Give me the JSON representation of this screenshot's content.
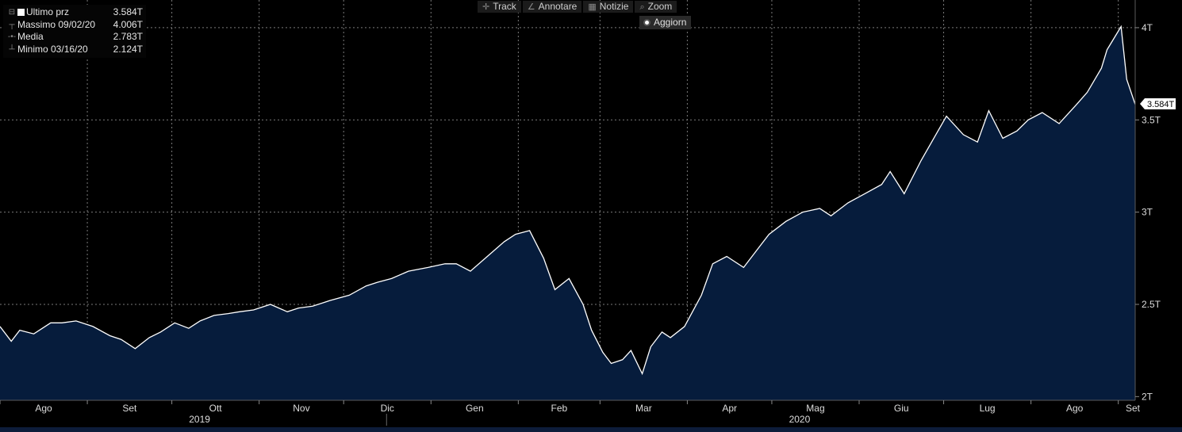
{
  "legend": {
    "last_label": "Ultimo prz",
    "last_value": "3.584T",
    "high_label": "Massimo 09/02/20",
    "high_value": "4.006T",
    "avg_label": "Media",
    "avg_value": "2.783T",
    "low_label": "Minimo 03/16/20",
    "low_value": "2.124T"
  },
  "toolbar": {
    "track": "Track",
    "annotate": "Annotare",
    "news": "Notizie",
    "zoom": "Zoom",
    "refresh": "Aggiorn"
  },
  "colors": {
    "line": "#ffffff",
    "fill": "#061c3c",
    "grid": "#7a7a7a",
    "background": "#000000"
  },
  "chart_data": {
    "type": "area",
    "x_unit": "month",
    "x_start": "2019-08-01",
    "x_end": "2020-09-07",
    "ylim": [
      1.98,
      4.15
    ],
    "y_ticks": [
      2,
      2.5,
      3,
      3.5,
      4
    ],
    "y_tick_labels": [
      "2T",
      "2.5T",
      "3T",
      "3.5T",
      "4T"
    ],
    "last_value_label": "3.584T",
    "last_value": 3.584,
    "month_labels": [
      "Ago",
      "Set",
      "Ott",
      "Nov",
      "Dic",
      "Gen",
      "Feb",
      "Mar",
      "Apr",
      "Mag",
      "Giu",
      "Lug",
      "Ago",
      "Set"
    ],
    "month_dates": [
      "2019-08-01",
      "2019-09-01",
      "2019-10-01",
      "2019-11-01",
      "2019-12-01",
      "2020-01-01",
      "2020-02-01",
      "2020-03-01",
      "2020-04-01",
      "2020-05-01",
      "2020-06-01",
      "2020-07-01",
      "2020-08-01",
      "2020-09-01"
    ],
    "year_labels": [
      "2019",
      "2020"
    ],
    "year_dates": [
      "2019-10-01",
      "2020-05-01"
    ],
    "grid": true,
    "series": [
      {
        "dates": [
          "2019-08-01",
          "2019-08-05",
          "2019-08-08",
          "2019-08-13",
          "2019-08-19",
          "2019-08-23",
          "2019-08-28",
          "2019-09-03",
          "2019-09-09",
          "2019-09-13",
          "2019-09-18",
          "2019-09-23",
          "2019-09-27",
          "2019-10-02",
          "2019-10-07",
          "2019-10-11",
          "2019-10-16",
          "2019-10-21",
          "2019-10-25",
          "2019-10-30",
          "2019-11-05",
          "2019-11-11",
          "2019-11-15",
          "2019-11-20",
          "2019-11-26",
          "2019-12-03",
          "2019-12-09",
          "2019-12-13",
          "2019-12-18",
          "2019-12-24",
          "2019-12-31",
          "2020-01-06",
          "2020-01-10",
          "2020-01-15",
          "2020-01-21",
          "2020-01-27",
          "2020-01-31",
          "2020-02-05",
          "2020-02-10",
          "2020-02-14",
          "2020-02-19",
          "2020-02-24",
          "2020-02-27",
          "2020-03-02",
          "2020-03-05",
          "2020-03-09",
          "2020-03-12",
          "2020-03-16",
          "2020-03-19",
          "2020-03-23",
          "2020-03-26",
          "2020-03-31",
          "2020-04-06",
          "2020-04-10",
          "2020-04-15",
          "2020-04-21",
          "2020-04-27",
          "2020-04-30",
          "2020-05-06",
          "2020-05-12",
          "2020-05-18",
          "2020-05-22",
          "2020-05-28",
          "2020-06-03",
          "2020-06-09",
          "2020-06-12",
          "2020-06-17",
          "2020-06-23",
          "2020-06-29",
          "2020-07-02",
          "2020-07-08",
          "2020-07-13",
          "2020-07-17",
          "2020-07-22",
          "2020-07-27",
          "2020-07-31",
          "2020-08-05",
          "2020-08-11",
          "2020-08-17",
          "2020-08-21",
          "2020-08-26",
          "2020-08-28",
          "2020-09-02",
          "2020-09-04",
          "2020-09-07"
        ],
        "values": [
          2.38,
          2.3,
          2.36,
          2.34,
          2.4,
          2.4,
          2.41,
          2.38,
          2.33,
          2.31,
          2.26,
          2.32,
          2.35,
          2.4,
          2.37,
          2.41,
          2.44,
          2.45,
          2.46,
          2.47,
          2.5,
          2.46,
          2.48,
          2.49,
          2.52,
          2.55,
          2.6,
          2.62,
          2.64,
          2.68,
          2.7,
          2.72,
          2.72,
          2.68,
          2.76,
          2.84,
          2.88,
          2.9,
          2.75,
          2.58,
          2.64,
          2.5,
          2.36,
          2.24,
          2.18,
          2.2,
          2.25,
          2.124,
          2.27,
          2.35,
          2.32,
          2.38,
          2.55,
          2.72,
          2.76,
          2.7,
          2.82,
          2.88,
          2.95,
          3.0,
          3.02,
          2.98,
          3.05,
          3.1,
          3.15,
          3.22,
          3.1,
          3.28,
          3.44,
          3.52,
          3.42,
          3.38,
          3.55,
          3.4,
          3.44,
          3.5,
          3.54,
          3.48,
          3.58,
          3.65,
          3.78,
          3.88,
          4.006,
          3.72,
          3.584
        ]
      }
    ]
  }
}
